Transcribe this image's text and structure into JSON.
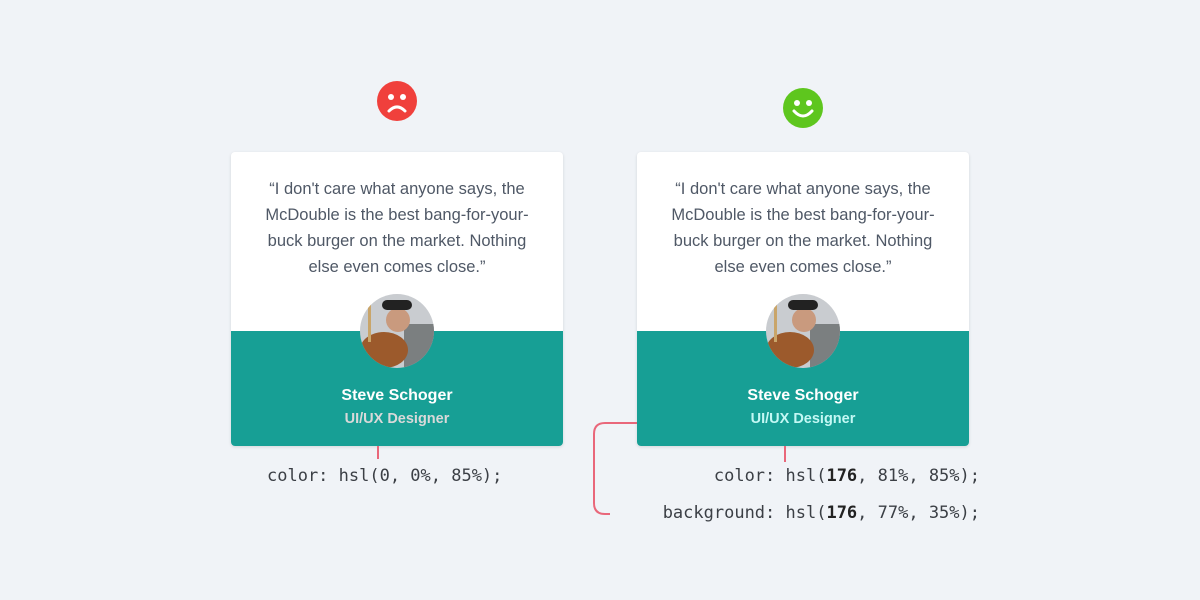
{
  "colors": {
    "bad_face": "#f0403c",
    "good_face": "#5ec61e",
    "card_bg": "#179f95",
    "bad_role": "#d9d9d9",
    "good_role": "#c3f8f4",
    "annotation_line": "#e9677a"
  },
  "bad": {
    "icon": "sad-face-icon",
    "quote": "“I don't care what anyone says, the McDouble is the best bang-for-your-buck burger on the market. Nothing else even comes close.”",
    "name": "Steve Schoger",
    "role": "UI/UX Designer",
    "code_prefix": "color: hsl(0, 0%, 85%);"
  },
  "good": {
    "icon": "happy-face-icon",
    "quote": "“I don't care what anyone says, the McDouble is the best bang-for-your-buck burger on the market. Nothing else even comes close.”",
    "name": "Steve Schoger",
    "role": "UI/UX Designer",
    "color_code": {
      "prefix": "color: hsl(",
      "hue": "176",
      "suffix": ", 81%, 85%);"
    },
    "bg_code": {
      "prefix": "background: hsl(",
      "hue": "176",
      "suffix": ", 77%, 35%);"
    }
  }
}
